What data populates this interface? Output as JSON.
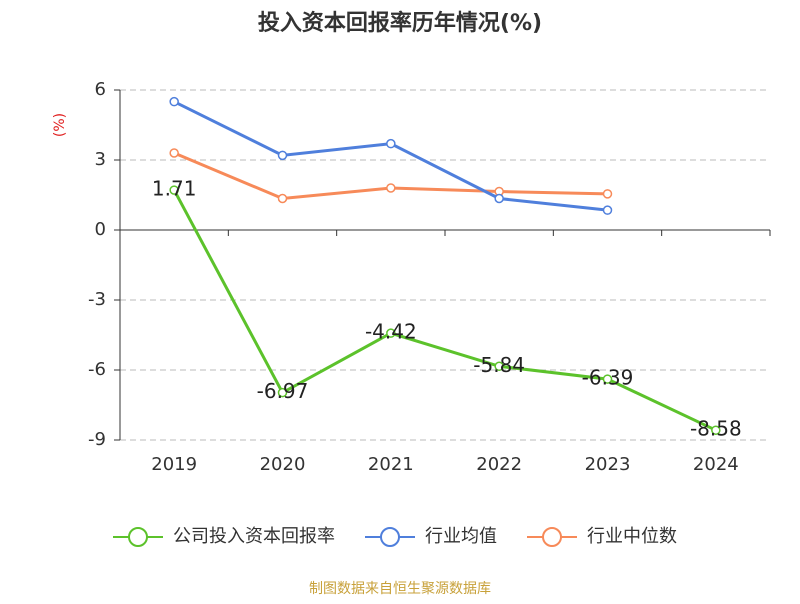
{
  "chart_data": {
    "type": "line",
    "title": "投入资本回报率历年情况(%)",
    "y_label": "(%)",
    "categories": [
      "2019",
      "2020",
      "2021",
      "2022",
      "2023",
      "2024"
    ],
    "series": [
      {
        "name": "公司投入资本回报率",
        "color": "#5cc22b",
        "values": [
          1.71,
          -6.97,
          -4.42,
          -5.84,
          -6.39,
          -8.58
        ],
        "data_labels": true
      },
      {
        "name": "行业均值",
        "color": "#4f7fdc",
        "values": [
          5.5,
          3.2,
          3.7,
          1.35,
          0.85,
          null
        ]
      },
      {
        "name": "行业中位数",
        "color": "#f78a59",
        "values": [
          3.3,
          1.35,
          1.8,
          1.65,
          1.55,
          null
        ]
      }
    ],
    "ylim": [
      -9,
      6
    ],
    "yticks": [
      -9,
      -6,
      -3,
      0,
      3,
      6
    ],
    "grid": true,
    "legend": "bottom",
    "source": "制图数据来自恒生聚源数据库"
  }
}
